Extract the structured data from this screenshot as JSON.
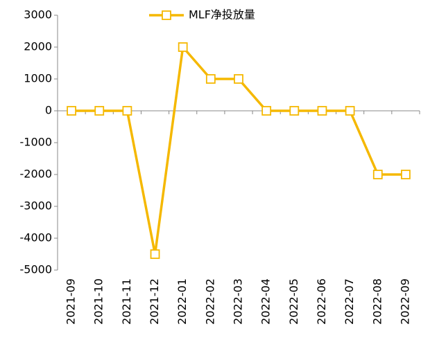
{
  "chart_data": {
    "type": "line",
    "categories": [
      "2021-09",
      "2021-10",
      "2021-11",
      "2021-12",
      "2022-01",
      "2022-02",
      "2022-03",
      "2022-04",
      "2022-05",
      "2022-06",
      "2022-07",
      "2022-08",
      "2022-09"
    ],
    "series": [
      {
        "name": "MLF净投放量",
        "color": "#f5b800",
        "values": [
          0,
          0,
          0,
          -4500,
          2000,
          1000,
          1000,
          0,
          0,
          0,
          0,
          -2000,
          -2000
        ]
      }
    ],
    "ylim": [
      -5000,
      3000
    ],
    "yticks": [
      -5000,
      -4000,
      -3000,
      -2000,
      -1000,
      0,
      1000,
      2000,
      3000
    ],
    "legend": "top"
  }
}
